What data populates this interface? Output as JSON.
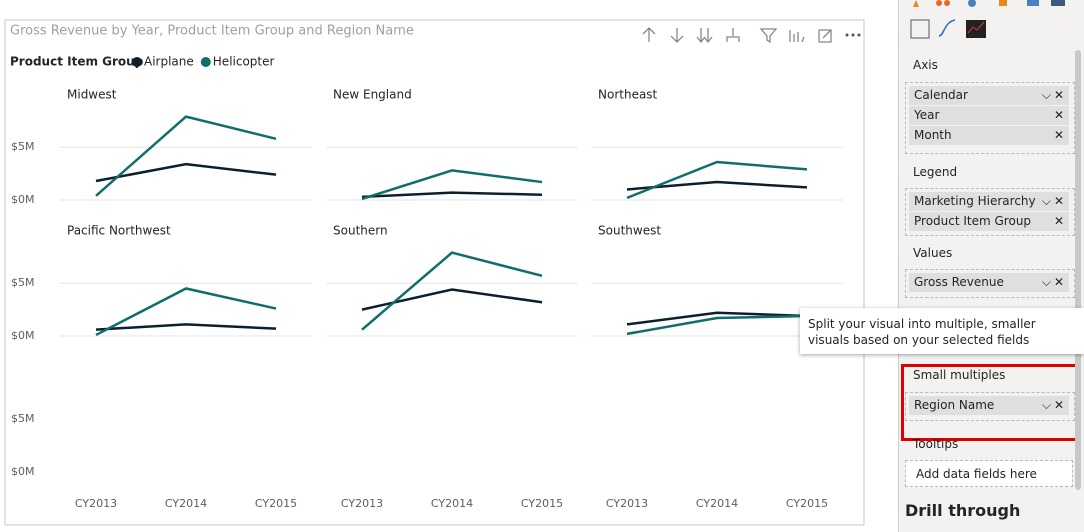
{
  "chart_data": {
    "type": "line",
    "title": "Gross Revenue by Year, Product Item Group and Region Name",
    "legend_title": "Product Item Group",
    "categories": [
      "CY2013",
      "CY2014",
      "CY2015"
    ],
    "series": [
      {
        "name": "Airplane",
        "color": "#0d1f2d"
      },
      {
        "name": "Helicopter",
        "color": "#0f6e6b"
      }
    ],
    "ylim": [
      0,
      9000000
    ],
    "yticks": [
      {
        "value": 0,
        "label": "$0M"
      },
      {
        "value": 5000000,
        "label": "$5M"
      }
    ],
    "grid": true,
    "panels": [
      {
        "title": "Midwest",
        "values": [
          [
            1800000,
            3400000,
            2400000
          ],
          [
            400000,
            7900000,
            5800000
          ]
        ]
      },
      {
        "title": "New England",
        "values": [
          [
            300000,
            700000,
            500000
          ],
          [
            100000,
            2800000,
            1700000
          ]
        ]
      },
      {
        "title": "Northeast",
        "values": [
          [
            1000000,
            1700000,
            1200000
          ],
          [
            200000,
            3600000,
            2900000
          ]
        ]
      },
      {
        "title": "Pacific Northwest",
        "values": [
          [
            600000,
            1100000,
            700000
          ],
          [
            100000,
            4500000,
            2600000
          ]
        ]
      },
      {
        "title": "Southern",
        "values": [
          [
            2500000,
            4400000,
            3200000
          ],
          [
            600000,
            7900000,
            5700000
          ]
        ]
      },
      {
        "title": "Southwest",
        "values": [
          [
            1100000,
            2200000,
            1900000
          ],
          [
            200000,
            1700000,
            1900000
          ]
        ]
      }
    ]
  },
  "pane": {
    "axis": {
      "title": "Axis",
      "fields": [
        "Calendar",
        "Year",
        "Month"
      ]
    },
    "legend": {
      "title": "Legend",
      "fields": [
        "Marketing Hierarchy",
        "Product Item Group"
      ]
    },
    "values": {
      "title": "Values",
      "fields": [
        "Gross Revenue"
      ]
    },
    "small_multiples": {
      "title": "Small multiples",
      "fields": [
        "Region Name"
      ]
    },
    "tooltips": {
      "title": "Tooltips",
      "placeholder": "Add data fields here"
    },
    "drill_through": "Drill through"
  },
  "tooltip": "Split your visual into multiple, smaller visuals based on your selected fields"
}
